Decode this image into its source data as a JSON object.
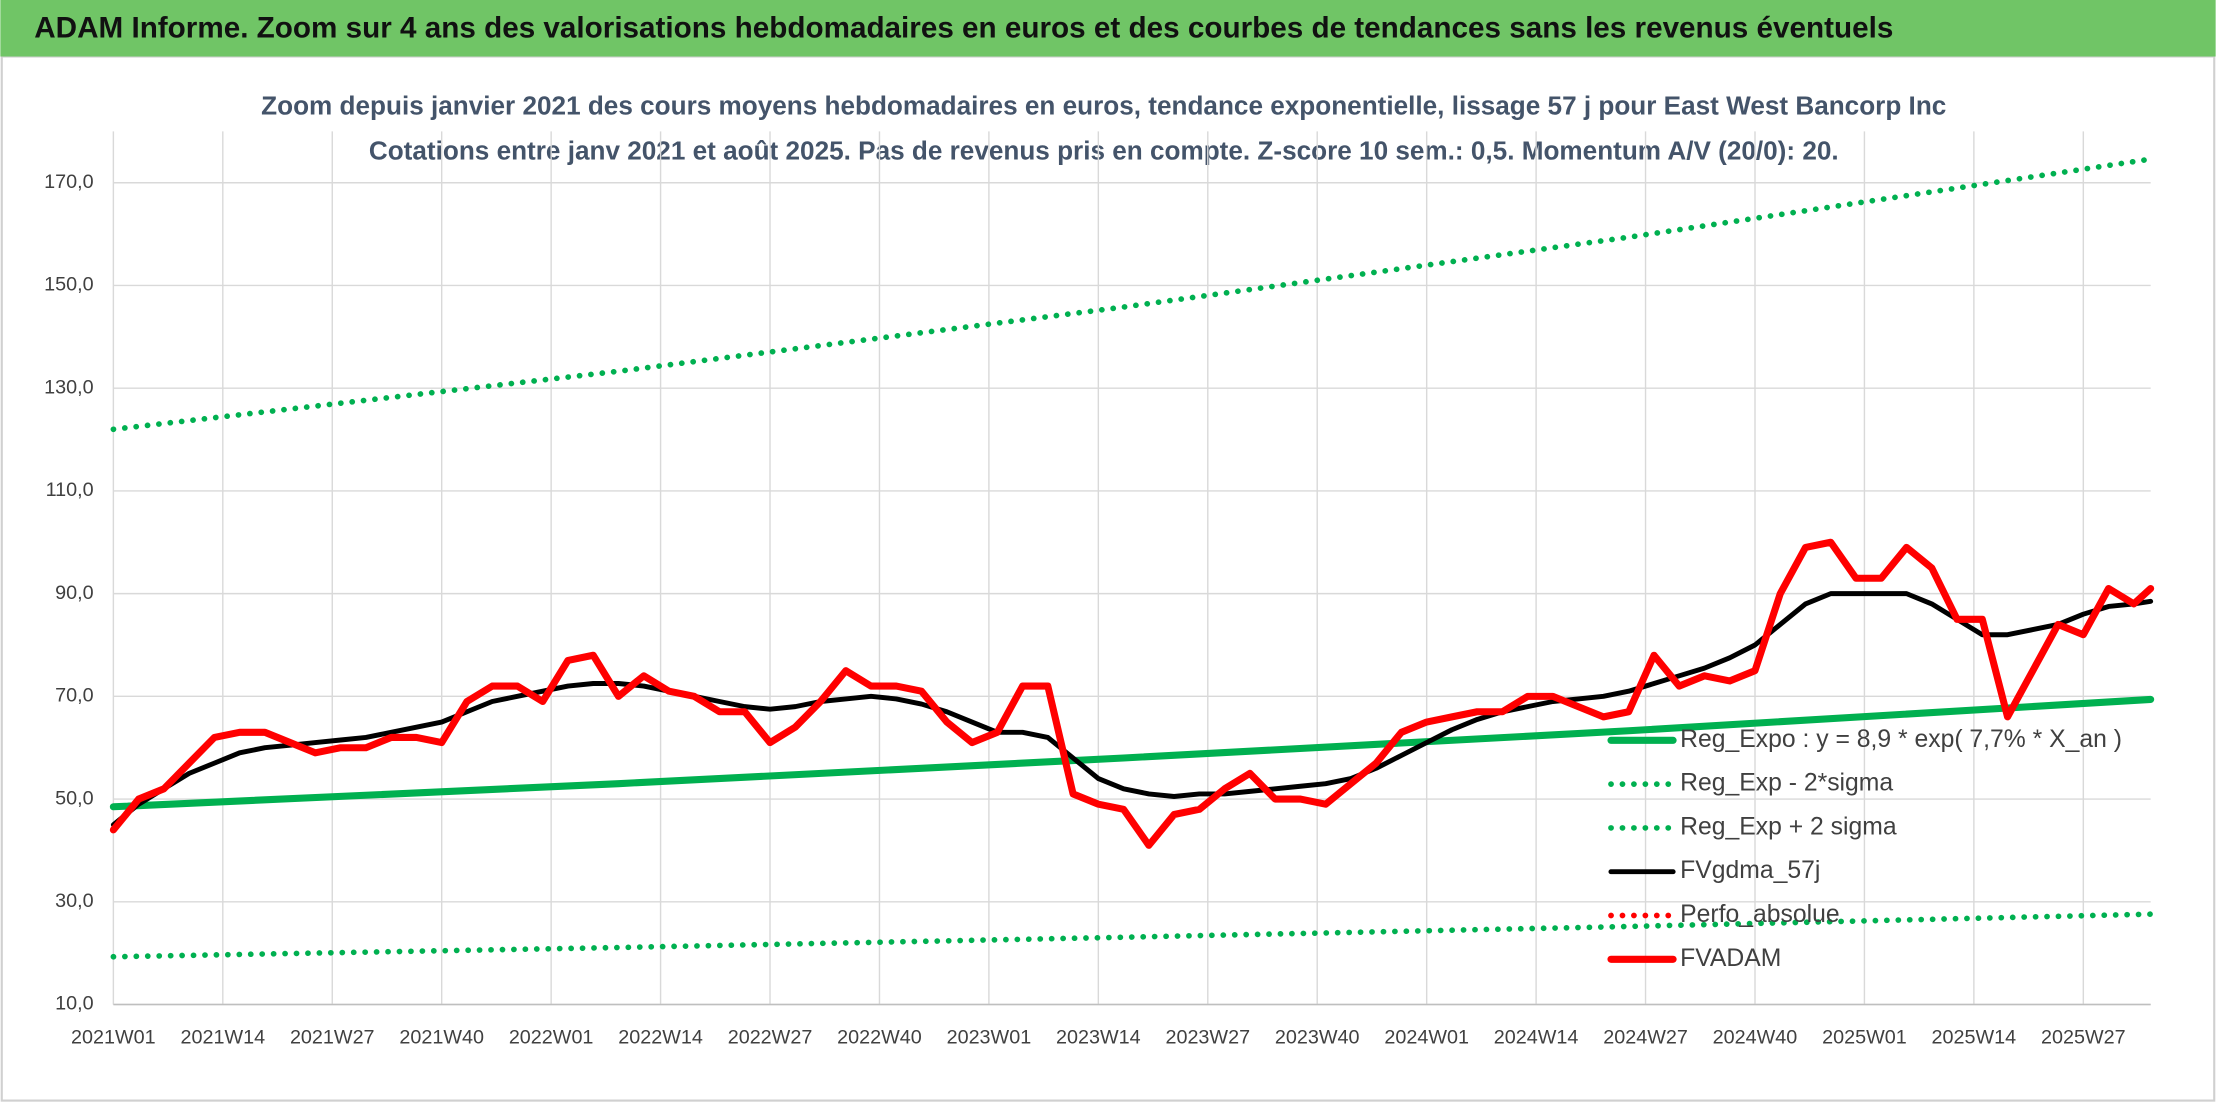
{
  "header": {
    "title": "ADAM Informe. Zoom sur 4 ans des valorisations hebdomadaires en euros et des courbes de tendances sans les revenus éventuels"
  },
  "chart_data": {
    "type": "line",
    "title": [
      "Zoom depuis janvier 2021 des cours moyens hebdomadaires en euros, tendance exponentielle, lissage 57 j pour East West Bancorp Inc",
      "Cotations entre janv 2021 et août 2025. Pas de revenus pris en compte. Z-score 10 sem.: 0,5. Momentum A/V (20/0): 20."
    ],
    "xlim": [
      0,
      242
    ],
    "xticks": [
      {
        "value": 0,
        "label": "2021W01"
      },
      {
        "value": 13,
        "label": "2021W14"
      },
      {
        "value": 26,
        "label": "2021W27"
      },
      {
        "value": 39,
        "label": "2021W40"
      },
      {
        "value": 52,
        "label": "2022W01"
      },
      {
        "value": 65,
        "label": "2022W14"
      },
      {
        "value": 78,
        "label": "2022W27"
      },
      {
        "value": 91,
        "label": "2022W40"
      },
      {
        "value": 104,
        "label": "2023W01"
      },
      {
        "value": 117,
        "label": "2023W14"
      },
      {
        "value": 130,
        "label": "2023W27"
      },
      {
        "value": 143,
        "label": "2023W40"
      },
      {
        "value": 156,
        "label": "2024W01"
      },
      {
        "value": 169,
        "label": "2024W14"
      },
      {
        "value": 182,
        "label": "2024W27"
      },
      {
        "value": 195,
        "label": "2024W40"
      },
      {
        "value": 208,
        "label": "2025W01"
      },
      {
        "value": 221,
        "label": "2025W14"
      },
      {
        "value": 234,
        "label": "2025W27"
      }
    ],
    "ylim": [
      10,
      180
    ],
    "yticks": [
      {
        "value": 10,
        "label": "10,0"
      },
      {
        "value": 30,
        "label": "30,0"
      },
      {
        "value": 50,
        "label": "50,0"
      },
      {
        "value": 70,
        "label": "70,0"
      },
      {
        "value": 90,
        "label": "90,0"
      },
      {
        "value": 110,
        "label": "110,0"
      },
      {
        "value": 130,
        "label": "130,0"
      },
      {
        "value": 150,
        "label": "150,0"
      },
      {
        "value": 170,
        "label": "170,0"
      }
    ],
    "grid": true,
    "legend": "lower right",
    "series": [
      {
        "name": "Reg_Expo : y = 8,9 * exp( 7,7% *  X_an )",
        "color": "#00b050",
        "style": "solid",
        "x": [
          0,
          60,
          120,
          180,
          242
        ],
        "values": [
          48.5,
          53.0,
          58.0,
          63.3,
          69.4
        ]
      },
      {
        "name": "Reg_Exp - 2*sigma",
        "color": "#00b050",
        "style": "dotted",
        "x": [
          0,
          60,
          120,
          180,
          242
        ],
        "values": [
          19.3,
          21.1,
          23.1,
          25.2,
          27.6
        ]
      },
      {
        "name": "Reg_Exp + 2 sigma",
        "color": "#00b050",
        "style": "dotted",
        "x": [
          0,
          60,
          120,
          180,
          242
        ],
        "values": [
          122,
          133.3,
          145.8,
          159.4,
          174.6
        ]
      },
      {
        "name": "FVgdma_57j",
        "color": "#000000",
        "style": "solid",
        "x": [
          0,
          3,
          6,
          9,
          12,
          15,
          18,
          21,
          24,
          27,
          30,
          33,
          36,
          39,
          42,
          45,
          48,
          51,
          54,
          57,
          60,
          63,
          66,
          69,
          72,
          75,
          78,
          81,
          84,
          87,
          90,
          93,
          96,
          99,
          102,
          105,
          108,
          111,
          114,
          117,
          120,
          123,
          126,
          129,
          132,
          135,
          138,
          141,
          144,
          147,
          150,
          153,
          156,
          159,
          162,
          165,
          168,
          171,
          174,
          177,
          180,
          183,
          186,
          189,
          192,
          195,
          198,
          201,
          204,
          207,
          210,
          213,
          216,
          219,
          222,
          225,
          228,
          231,
          234,
          237,
          240,
          242
        ],
        "values": [
          45,
          49,
          52,
          55,
          57,
          59,
          60,
          60.5,
          61,
          61.5,
          62,
          63,
          64,
          65,
          67,
          69,
          70,
          71,
          72,
          72.5,
          72.5,
          72,
          71,
          70,
          69,
          68,
          67.5,
          68,
          69,
          69.5,
          70,
          69.5,
          68.5,
          67,
          65,
          63,
          63,
          62,
          58,
          54,
          52,
          51,
          50.5,
          51,
          51,
          51.5,
          52,
          52.5,
          53,
          54,
          56,
          58.5,
          61,
          63.5,
          65.5,
          67,
          68,
          69,
          69.5,
          70,
          71,
          72.5,
          74,
          75.5,
          77.5,
          80,
          84,
          88,
          90,
          90,
          90,
          90,
          88,
          85,
          82,
          82,
          83,
          84,
          86,
          87.5,
          88,
          88.5
        ]
      },
      {
        "name": "Perfo_absolue",
        "color": "#ff0000",
        "style": "dotted",
        "x": [],
        "values": []
      },
      {
        "name": "FVADAM",
        "color": "#ff0000",
        "style": "solid",
        "x": [
          0,
          3,
          6,
          9,
          12,
          15,
          18,
          21,
          24,
          27,
          30,
          33,
          36,
          39,
          42,
          45,
          48,
          51,
          54,
          57,
          60,
          63,
          66,
          69,
          72,
          75,
          78,
          81,
          84,
          87,
          90,
          93,
          96,
          99,
          102,
          105,
          108,
          111,
          114,
          117,
          120,
          123,
          126,
          129,
          132,
          135,
          138,
          141,
          144,
          147,
          150,
          153,
          156,
          159,
          162,
          165,
          168,
          171,
          174,
          177,
          180,
          183,
          186,
          189,
          192,
          195,
          198,
          201,
          204,
          207,
          210,
          213,
          216,
          219,
          222,
          225,
          228,
          231,
          234,
          237,
          240,
          242
        ],
        "values": [
          44,
          50,
          52,
          57,
          62,
          63,
          63,
          61,
          59,
          60,
          60,
          62,
          62,
          61,
          69,
          72,
          72,
          69,
          77,
          78,
          70,
          74,
          71,
          70,
          67,
          67,
          61,
          64,
          69,
          75,
          72,
          72,
          71,
          65,
          61,
          63,
          72,
          72,
          51,
          49,
          48,
          41,
          47,
          48,
          52,
          55,
          50,
          50,
          49,
          53,
          57,
          63,
          65,
          66,
          67,
          67,
          70,
          70,
          68,
          66,
          67,
          78,
          72,
          74,
          73,
          75,
          90,
          99,
          100,
          93,
          93,
          99,
          95,
          85,
          85,
          66,
          75,
          84,
          82,
          91,
          88,
          91
        ]
      }
    ]
  }
}
